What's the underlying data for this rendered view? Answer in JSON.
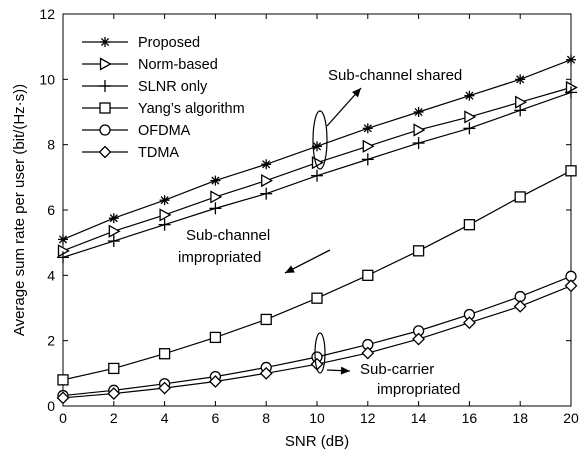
{
  "chart_data": {
    "type": "line",
    "title": "",
    "xlabel": "SNR (dB)",
    "ylabel": "Average sum rate per user (bit/(Hz·s))",
    "xlim": [
      0,
      20
    ],
    "ylim": [
      0,
      12
    ],
    "xticks": [
      0,
      2,
      4,
      6,
      8,
      10,
      12,
      14,
      16,
      18,
      20
    ],
    "yticks": [
      0,
      2,
      4,
      6,
      8,
      10,
      12
    ],
    "grid": false,
    "legend_position": "top-left",
    "x": [
      0,
      2,
      4,
      6,
      8,
      10,
      12,
      14,
      16,
      18,
      20
    ],
    "series": [
      {
        "name": "Proposed",
        "marker": "star",
        "values": [
          5.1,
          5.75,
          6.3,
          6.9,
          7.4,
          7.95,
          8.5,
          9.0,
          9.5,
          10.0,
          10.6
        ]
      },
      {
        "name": "Norm-based",
        "marker": "triangle-right",
        "values": [
          4.75,
          5.35,
          5.85,
          6.4,
          6.9,
          7.45,
          7.95,
          8.45,
          8.85,
          9.3,
          9.75
        ]
      },
      {
        "name": "SLNR only",
        "marker": "plus",
        "values": [
          4.55,
          5.05,
          5.55,
          6.05,
          6.5,
          7.05,
          7.55,
          8.05,
          8.5,
          9.05,
          9.6
        ]
      },
      {
        "name": "Yang’s algorithm",
        "marker": "square",
        "values": [
          0.8,
          1.15,
          1.6,
          2.1,
          2.65,
          3.3,
          4.0,
          4.75,
          5.55,
          6.4,
          7.2
        ]
      },
      {
        "name": "OFDMA",
        "marker": "circle",
        "values": [
          0.32,
          0.48,
          0.68,
          0.9,
          1.18,
          1.5,
          1.88,
          2.3,
          2.8,
          3.35,
          3.97
        ]
      },
      {
        "name": "TDMA",
        "marker": "diamond",
        "values": [
          0.25,
          0.38,
          0.55,
          0.75,
          1.0,
          1.28,
          1.62,
          2.05,
          2.55,
          3.05,
          3.68
        ]
      }
    ],
    "annotations": [
      {
        "id": "shared",
        "lines": [
          "Sub-channel shared"
        ]
      },
      {
        "id": "impropriated",
        "lines": [
          "Sub-channel",
          "impropriated"
        ]
      },
      {
        "id": "carrier",
        "lines": [
          "Sub-carrier",
          "impropriated"
        ]
      }
    ]
  }
}
